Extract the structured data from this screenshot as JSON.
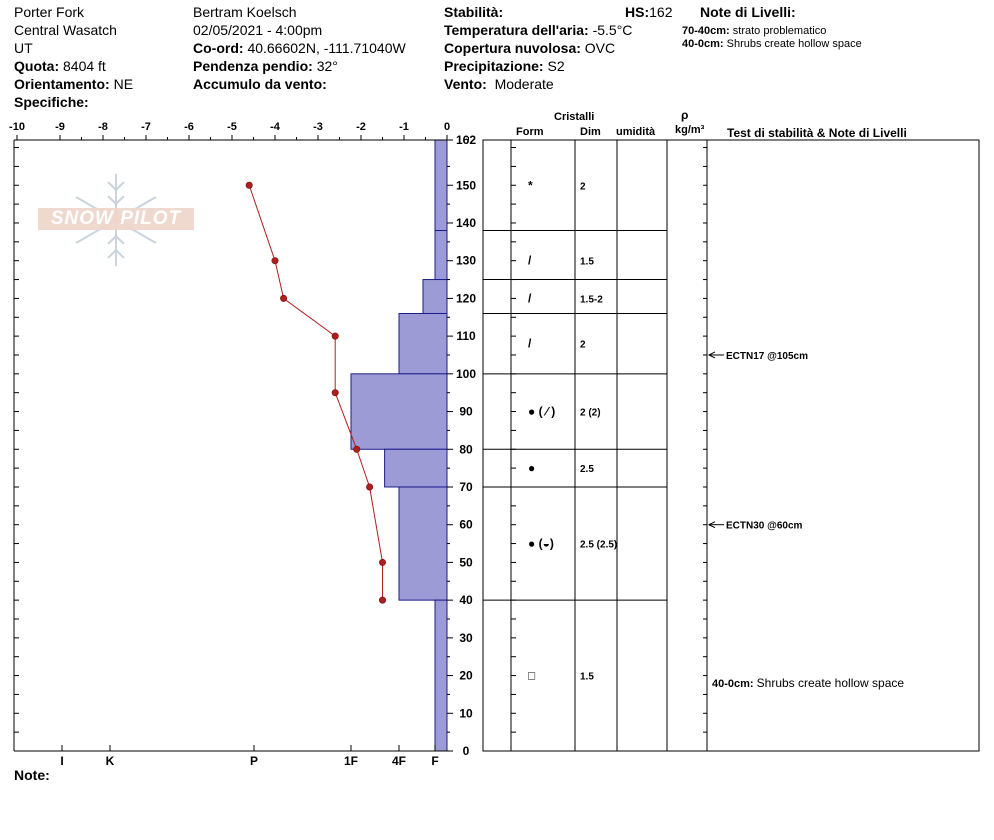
{
  "header": {
    "location": "Porter Fork",
    "range": "Central Wasatch",
    "state": "UT",
    "elevation_label": "Quota:",
    "elevation_value": "8404 ft",
    "aspect_label": "Orientamento:",
    "aspect_value": "NE",
    "specifics_label": "Specifiche:",
    "observer": "Bertram Koelsch",
    "datetime": "02/05/2021 - 4:00pm",
    "coords_label": "Co-ord:",
    "coords_value": "40.66602N, -111.71040W",
    "slope_label": "Pendenza pendio:",
    "slope_value": "32°",
    "wind_loading_label": "Accumulo da vento:",
    "stability_label": "Stabilità:",
    "hs_label": "HS:",
    "hs_value": "162",
    "air_temp_label": "Temperatura dell'aria:",
    "air_temp_value": "-5.5°C",
    "sky_label": "Copertura nuvolosa:",
    "sky_value": "OVC",
    "precip_label": "Precipitazione:",
    "precip_value": "S2",
    "wind_label": "Vento:",
    "wind_value": "Moderate",
    "layer_notes_title": "Note di Livelli:",
    "layer_notes": [
      {
        "range": "70-40cm:",
        "text": "strato problematico"
      },
      {
        "range": "40-0cm:",
        "text": "Shrubs create hollow space"
      }
    ]
  },
  "watermark": "SNOW PILOT",
  "columns": {
    "crystals": "Cristalli",
    "form": "Form",
    "size": "Dim",
    "moisture": "umidità",
    "density_symbol": "ρ",
    "density_unit": "kg/m³",
    "tests": "Test di stabilità & Note di Livelli"
  },
  "footer": {
    "notes_label": "Note:"
  },
  "chart_data": {
    "type": "snow_profile",
    "height_axis": {
      "range": [
        0,
        162
      ],
      "ticks": [
        0,
        10,
        20,
        30,
        40,
        50,
        60,
        70,
        80,
        90,
        100,
        110,
        120,
        130,
        140,
        150,
        162
      ]
    },
    "temperature_axis": {
      "range": [
        -10,
        0
      ],
      "ticks": [
        "-10",
        "-9",
        "-8",
        "-7",
        "-6",
        "-5",
        "-4",
        "-3",
        "-2",
        "-1",
        "0"
      ]
    },
    "hardness_scale": [
      {
        "label": "I",
        "value": 6
      },
      {
        "label": "K",
        "value": 5
      },
      {
        "label": "P",
        "value": 3
      },
      {
        "label": "1F",
        "value": 2
      },
      {
        "label": "4F",
        "value": 1
      },
      {
        "label": "F",
        "value": 0.25
      }
    ],
    "hardness_profile": [
      {
        "top": 162,
        "bottom": 138,
        "hardness": 0.25
      },
      {
        "top": 138,
        "bottom": 125,
        "hardness": 0.25
      },
      {
        "top": 125,
        "bottom": 116,
        "hardness": 0.5
      },
      {
        "top": 116,
        "bottom": 100,
        "hardness": 1
      },
      {
        "top": 100,
        "bottom": 80,
        "hardness": 2
      },
      {
        "top": 80,
        "bottom": 70,
        "hardness": 1.3
      },
      {
        "top": 70,
        "bottom": 40,
        "hardness": 1
      },
      {
        "top": 40,
        "bottom": 0,
        "hardness": 0.25
      }
    ],
    "temperature_profile": [
      {
        "height": 150,
        "temp": -4.6
      },
      {
        "height": 130,
        "temp": -4.0
      },
      {
        "height": 120,
        "temp": -3.8
      },
      {
        "height": 110,
        "temp": -2.6
      },
      {
        "height": 95,
        "temp": -2.6
      },
      {
        "height": 80,
        "temp": -2.1
      },
      {
        "height": 70,
        "temp": -1.8
      },
      {
        "height": 50,
        "temp": -1.5
      },
      {
        "height": 40,
        "temp": -1.5
      }
    ],
    "layers": [
      {
        "top": 162,
        "bottom": 138,
        "form_height": 150,
        "form_symbol": "*",
        "size": "2"
      },
      {
        "top": 138,
        "bottom": 125,
        "form_height": 130,
        "form_symbol": "/",
        "size": "1.5"
      },
      {
        "top": 125,
        "bottom": 116,
        "form_height": 120,
        "form_symbol": "/",
        "size": "1.5-2"
      },
      {
        "top": 116,
        "bottom": 100,
        "form_height": 108,
        "form_symbol": "/",
        "size": "2"
      },
      {
        "top": 100,
        "bottom": 80,
        "form_height": 90,
        "form_symbol": "● ( ⁄ )",
        "size": "2 (2)"
      },
      {
        "top": 80,
        "bottom": 70,
        "form_height": 75,
        "form_symbol": "●",
        "size": "2.5"
      },
      {
        "top": 70,
        "bottom": 40,
        "form_height": 55,
        "form_symbol": "● (◒)",
        "size": "2.5 (2.5)"
      },
      {
        "top": 40,
        "bottom": 0,
        "form_height": 20,
        "form_symbol": "□",
        "size": "1.5"
      }
    ],
    "layer_boundaries": [
      138,
      125,
      116,
      100,
      80,
      70,
      40
    ],
    "stability_tests": [
      {
        "height": 105,
        "text": "ECTN17 @105cm"
      },
      {
        "height": 60,
        "text": "ECTN30 @60cm"
      }
    ],
    "layer_comments": [
      {
        "height": 18,
        "range": "40-0cm:",
        "text": "Shrubs create hollow space"
      }
    ]
  }
}
